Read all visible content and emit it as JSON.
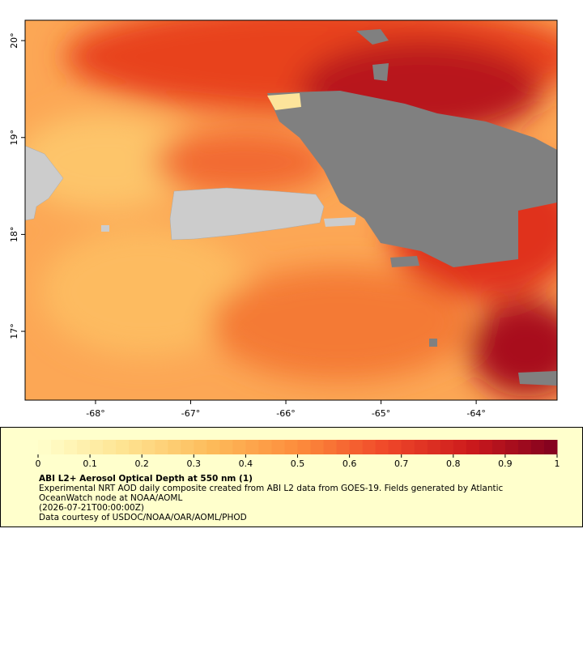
{
  "map": {
    "xlim": [
      -68.74,
      -63.15
    ],
    "ylim": [
      16.29,
      20.21
    ],
    "xticks": [
      {
        "value": -68,
        "label": "-68°"
      },
      {
        "value": -67,
        "label": "-67°"
      },
      {
        "value": -66,
        "label": "-66°"
      },
      {
        "value": -65,
        "label": "-65°"
      },
      {
        "value": -64,
        "label": "-64°"
      }
    ],
    "yticks": [
      {
        "value": 17,
        "label": "17°"
      },
      {
        "value": 18,
        "label": "18°"
      },
      {
        "value": 19,
        "label": "19°"
      },
      {
        "value": 20,
        "label": "20°"
      }
    ]
  },
  "colorbar": {
    "range": [
      0,
      1
    ],
    "ticks": [
      0,
      0.1,
      0.2,
      0.3,
      0.4,
      0.5,
      0.6,
      0.7,
      0.8,
      0.9,
      1
    ],
    "colors": [
      "#ffffcc",
      "#fee391",
      "#fdbb5a",
      "#fd8d3c",
      "#f0492a",
      "#cc1a1c",
      "#80001f"
    ]
  },
  "legend": {
    "title": "ABI L2+ Aerosol Optical Depth at 550 nm (1)",
    "lines": [
      "Experimental NRT AOD daily composite created from ABI L2 data from GOES-19. Fields generated by Atlantic",
      "OceanWatch node at NOAA/AOML",
      "(2026-07-21T00:00:00Z)",
      "Data courtesy of USDOC/NOAA/OAR/AOML/PHOD"
    ]
  }
}
